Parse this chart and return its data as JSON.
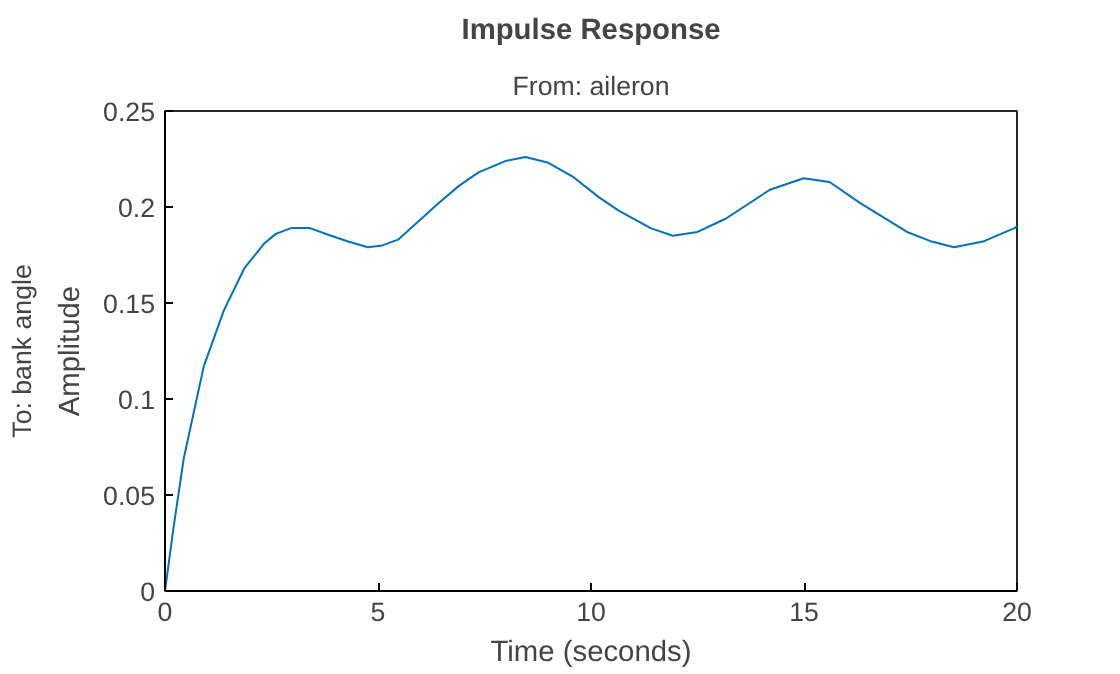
{
  "chart_data": {
    "type": "line",
    "title": "Impulse Response",
    "subtitle": "From: aileron",
    "xlabel": "Time (seconds)",
    "ylabel": "Amplitude",
    "y2label": "To: bank angle",
    "x": [
      0,
      0.2,
      0.44,
      0.91,
      1.38,
      1.86,
      2.33,
      2.6,
      2.96,
      3.4,
      3.9,
      4.3,
      4.76,
      5.1,
      5.47,
      6.42,
      6.9,
      7.36,
      8.0,
      8.46,
      9.0,
      9.56,
      10.19,
      10.66,
      11.4,
      11.92,
      12.5,
      13.17,
      14.2,
      14.99,
      15.6,
      16.32,
      17.42,
      18.0,
      18.52,
      19.2,
      19.94,
      20
    ],
    "series": [
      {
        "color": "#0072bd",
        "values": [
          0,
          0.033,
          0.069,
          0.117,
          0.146,
          0.168,
          0.181,
          0.186,
          0.189,
          0.189,
          0.185,
          0.182,
          0.179,
          0.18,
          0.183,
          0.202,
          0.211,
          0.218,
          0.224,
          0.226,
          0.223,
          0.216,
          0.205,
          0.198,
          0.189,
          0.185,
          0.187,
          0.194,
          0.209,
          0.215,
          0.213,
          0.202,
          0.187,
          0.182,
          0.179,
          0.182,
          0.189,
          0.19
        ]
      }
    ],
    "xlim": [
      0,
      20
    ],
    "ylim": [
      0,
      0.25
    ],
    "xticks": [
      0,
      5,
      10,
      15,
      20
    ],
    "yticks": [
      0,
      0.05,
      0.1,
      0.15,
      0.2,
      0.25
    ],
    "grid": false,
    "marker": "none",
    "line_style": "solid"
  }
}
